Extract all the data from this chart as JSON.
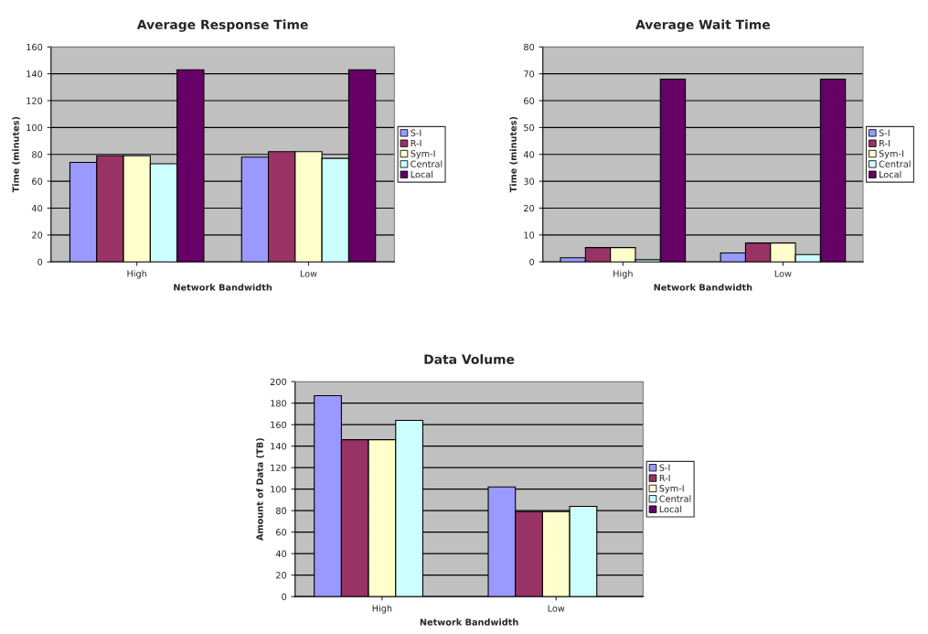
{
  "chart_data": [
    {
      "type": "bar",
      "title": "Average Response Time",
      "xlabel": "Network Bandwidth",
      "ylabel": "Time (minutes)",
      "categories": [
        "High",
        "Low"
      ],
      "ylim": [
        0,
        160
      ],
      "yticks": [
        0,
        20,
        40,
        60,
        80,
        100,
        120,
        140,
        160
      ],
      "grid": "y",
      "legend": "right",
      "series": [
        {
          "name": "S-I",
          "color": "#9999ff",
          "values": [
            74,
            78
          ]
        },
        {
          "name": "R-I",
          "color": "#993366",
          "values": [
            79,
            82
          ]
        },
        {
          "name": "Sym-I",
          "color": "#ffffcc",
          "values": [
            79,
            82
          ]
        },
        {
          "name": "Central",
          "color": "#ccffff",
          "values": [
            73,
            77
          ]
        },
        {
          "name": "Local",
          "color": "#660066",
          "values": [
            143,
            143
          ]
        }
      ]
    },
    {
      "type": "bar",
      "title": "Average Wait Time",
      "xlabel": "Network Bandwidth",
      "ylabel": "Time (minutes)",
      "categories": [
        "High",
        "Low"
      ],
      "ylim": [
        0,
        80
      ],
      "yticks": [
        0,
        10,
        20,
        30,
        40,
        50,
        60,
        70,
        80
      ],
      "grid": "y",
      "legend": "right",
      "series": [
        {
          "name": "S-I",
          "color": "#9999ff",
          "values": [
            1.5,
            3.3
          ]
        },
        {
          "name": "R-I",
          "color": "#993366",
          "values": [
            5.3,
            7
          ]
        },
        {
          "name": "Sym-I",
          "color": "#ffffcc",
          "values": [
            5.3,
            7
          ]
        },
        {
          "name": "Central",
          "color": "#ccffff",
          "values": [
            0.8,
            2.7
          ]
        },
        {
          "name": "Local",
          "color": "#660066",
          "values": [
            68,
            68
          ]
        }
      ]
    },
    {
      "type": "bar",
      "title": "Data Volume",
      "xlabel": "Network Bandwidth",
      "ylabel": "Amount of Data (TB)",
      "categories": [
        "High",
        "Low"
      ],
      "ylim": [
        0,
        200
      ],
      "yticks": [
        0,
        20,
        40,
        60,
        80,
        100,
        120,
        140,
        160,
        180,
        200
      ],
      "grid": "y",
      "legend": "right",
      "series": [
        {
          "name": "S-I",
          "color": "#9999ff",
          "values": [
            187,
            102
          ]
        },
        {
          "name": "R-I",
          "color": "#993366",
          "values": [
            146,
            79
          ]
        },
        {
          "name": "Sym-I",
          "color": "#ffffcc",
          "values": [
            146,
            79
          ]
        },
        {
          "name": "Central",
          "color": "#ccffff",
          "values": [
            164,
            84
          ]
        },
        {
          "name": "Local",
          "color": "#660066",
          "values": [
            null,
            null
          ]
        }
      ]
    }
  ]
}
